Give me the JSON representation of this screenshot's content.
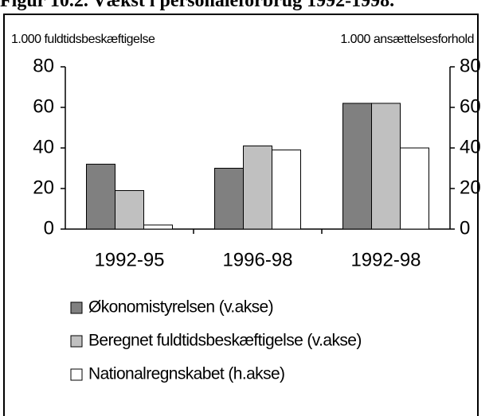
{
  "chart_data": {
    "type": "bar",
    "title": "Figur 10.2. Vækst i personaleforbrug 1992-1998.",
    "y_label": "1.000 fuldtidsbeskæftigelse",
    "y2_label": "1.000 ansættelsesforhold",
    "categories": [
      "1992-95",
      "1996-98",
      "1992-98"
    ],
    "series": [
      {
        "name": "Økonomistyrelsen (v.akse)",
        "color": "#808080",
        "values": [
          32,
          30,
          62
        ]
      },
      {
        "name": "Beregnet fuldtidsbeskæftigelse (v.akse)",
        "color": "#c0c0c0",
        "values": [
          19,
          41,
          62
        ]
      },
      {
        "name": "Nationalregnskabet (h.akse)",
        "color": "#ffffff",
        "values": [
          2,
          39,
          40
        ],
        "axis": "y2"
      }
    ],
    "ylim": [
      0,
      80
    ],
    "yticks": [
      0,
      20,
      40,
      60,
      80
    ],
    "y2lim": [
      0,
      80
    ],
    "y2ticks": [
      0,
      20,
      40,
      60,
      80
    ]
  }
}
